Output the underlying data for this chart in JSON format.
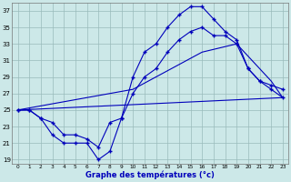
{
  "title": "Graphe des températures (°c)",
  "xlim": [
    -0.5,
    23.5
  ],
  "ylim": [
    18.5,
    38.0
  ],
  "yticks": [
    19,
    21,
    23,
    25,
    27,
    29,
    31,
    33,
    35,
    37
  ],
  "xticks": [
    0,
    1,
    2,
    3,
    4,
    5,
    6,
    7,
    8,
    9,
    10,
    11,
    12,
    13,
    14,
    15,
    16,
    17,
    18,
    19,
    20,
    21,
    22,
    23
  ],
  "bg_color": "#cce8e8",
  "line_color": "#0000bb",
  "grid_color": "#99bbbb",
  "line1_x": [
    0,
    1,
    2,
    3,
    4,
    5,
    6,
    7,
    8,
    9,
    10,
    11,
    12,
    13,
    14,
    15,
    16,
    17,
    18,
    19,
    20,
    21,
    22,
    23
  ],
  "line1_y": [
    25.0,
    25.0,
    24.0,
    22.0,
    21.0,
    21.0,
    21.0,
    19.0,
    20.0,
    24.0,
    29.0,
    32.0,
    33.0,
    35.0,
    36.5,
    37.5,
    37.5,
    36.0,
    34.5,
    33.5,
    30.0,
    28.5,
    28.0,
    27.5
  ],
  "line2_x": [
    0,
    1,
    2,
    3,
    4,
    5,
    6,
    7,
    8,
    9,
    10,
    11,
    12,
    13,
    14,
    15,
    16,
    17,
    18,
    19,
    20,
    21,
    22,
    23
  ],
  "line2_y": [
    25.0,
    25.0,
    24.0,
    23.5,
    22.0,
    22.0,
    21.5,
    20.5,
    23.5,
    24.0,
    27.0,
    29.0,
    30.0,
    32.0,
    33.5,
    34.5,
    35.0,
    34.0,
    34.0,
    33.0,
    30.0,
    28.5,
    27.5,
    26.5
  ],
  "line3_x": [
    0,
    23
  ],
  "line3_y": [
    25.0,
    26.5
  ],
  "line4_x": [
    0,
    10,
    16,
    19,
    21,
    22,
    23
  ],
  "line4_y": [
    25.0,
    27.5,
    32.0,
    33.0,
    30.0,
    28.5,
    26.5
  ]
}
